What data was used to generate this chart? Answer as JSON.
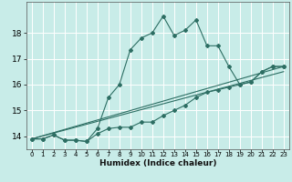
{
  "xlabel": "Humidex (Indice chaleur)",
  "bg_color": "#c8ece8",
  "grid_color": "#ffffff",
  "line_color": "#2d6e63",
  "xlim": [
    -0.5,
    23.5
  ],
  "ylim": [
    13.5,
    19.2
  ],
  "yticks": [
    14,
    15,
    16,
    17,
    18
  ],
  "xticks": [
    0,
    1,
    2,
    3,
    4,
    5,
    6,
    7,
    8,
    9,
    10,
    11,
    12,
    13,
    14,
    15,
    16,
    17,
    18,
    19,
    20,
    21,
    22,
    23
  ],
  "series1_x": [
    0,
    1,
    2,
    3,
    4,
    5,
    6,
    7,
    8,
    9,
    10,
    11,
    12,
    13,
    14,
    15,
    16,
    17,
    18,
    19,
    20,
    21,
    22,
    23
  ],
  "series1_y": [
    13.9,
    13.9,
    14.05,
    13.85,
    13.85,
    13.8,
    14.3,
    15.5,
    16.0,
    17.35,
    17.8,
    18.0,
    18.65,
    17.9,
    18.1,
    18.5,
    17.5,
    17.5,
    16.7,
    16.0,
    16.1,
    16.5,
    16.7,
    16.7
  ],
  "series2_x": [
    0,
    1,
    2,
    3,
    4,
    5,
    6,
    7,
    8,
    9,
    10,
    11,
    12,
    13,
    14,
    15,
    16,
    17,
    18,
    19,
    20,
    21,
    22,
    23
  ],
  "series2_y": [
    13.9,
    13.9,
    14.05,
    13.85,
    13.85,
    13.8,
    14.1,
    14.3,
    14.35,
    14.35,
    14.55,
    14.55,
    14.8,
    15.0,
    15.2,
    15.5,
    15.7,
    15.8,
    15.9,
    16.0,
    16.1,
    16.5,
    16.7,
    16.7
  ],
  "series3_x": [
    0,
    23
  ],
  "series3_y": [
    13.9,
    16.7
  ],
  "series4_x": [
    0,
    23
  ],
  "series4_y": [
    13.9,
    16.5
  ]
}
